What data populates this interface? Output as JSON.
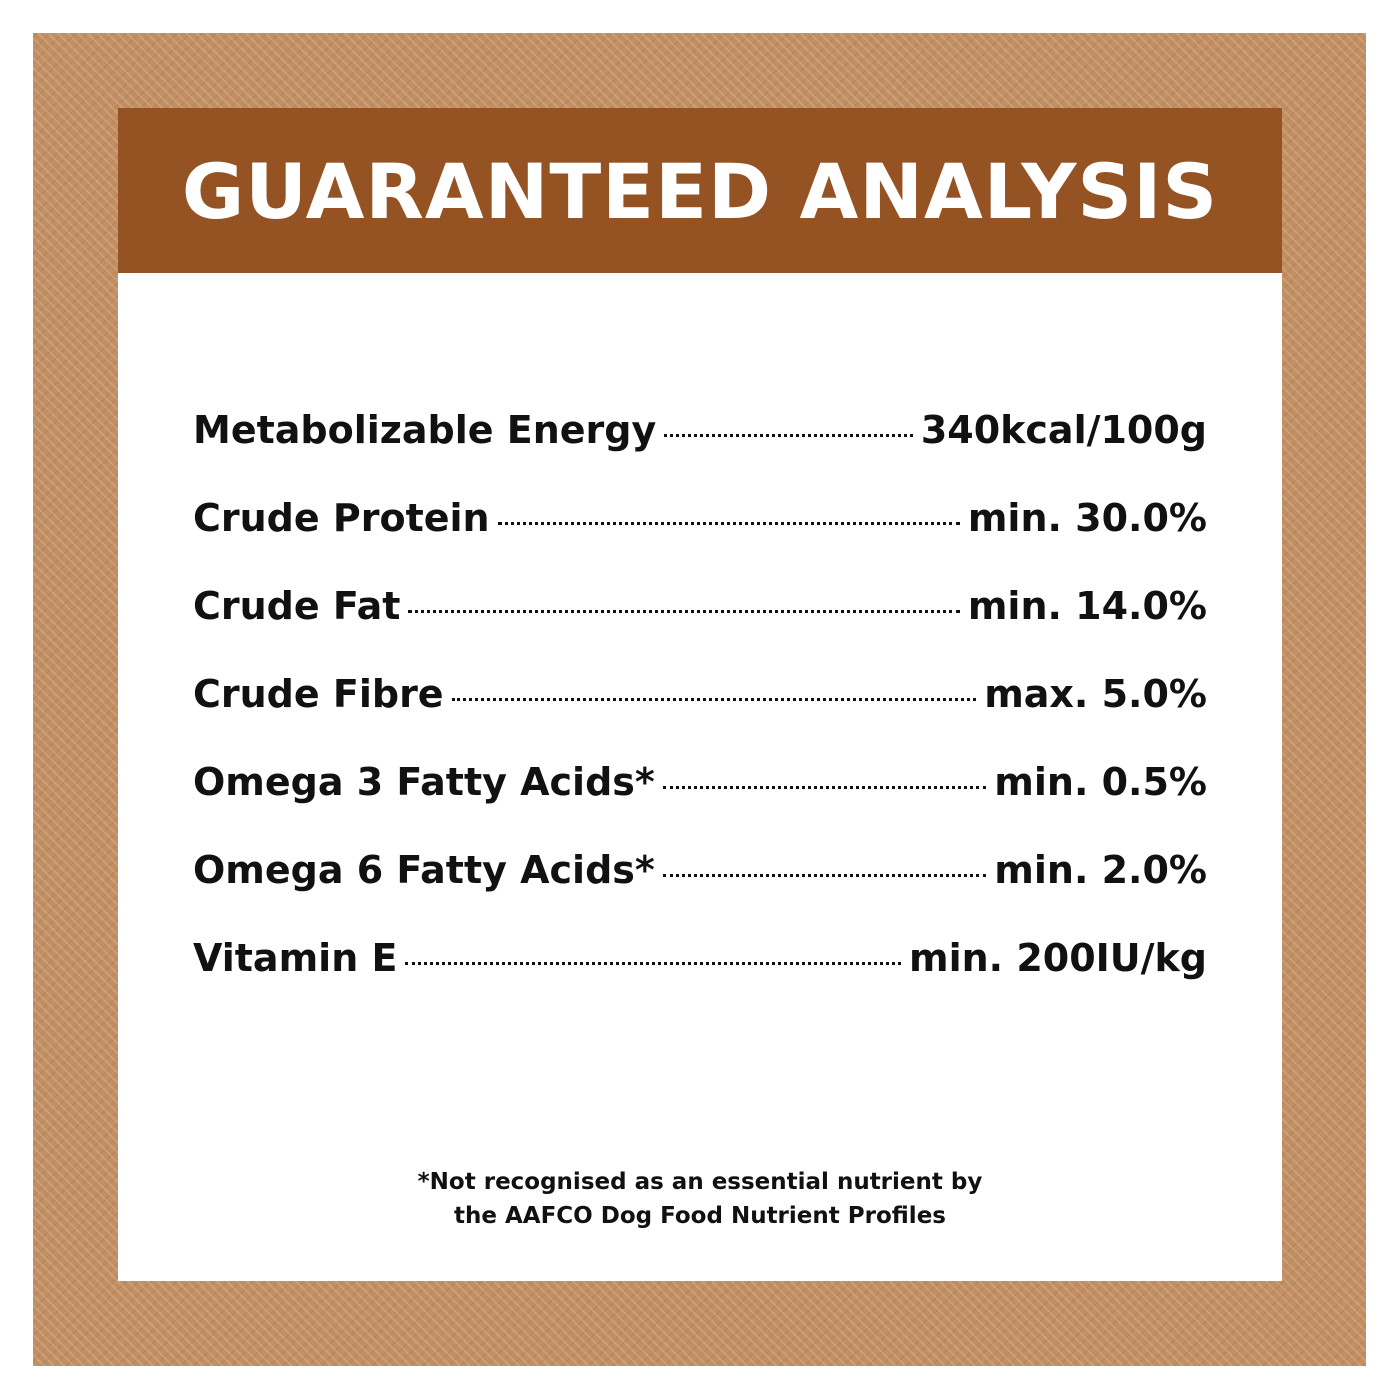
{
  "title": "GUARANTEED ANALYSIS",
  "colors": {
    "frame": "#c18f63",
    "header": "#955324",
    "panel": "#ffffff"
  },
  "rows": [
    {
      "label": "Metabolizable Energy",
      "value": "340kcal/100g"
    },
    {
      "label": "Crude Protein",
      "value": "min. 30.0%"
    },
    {
      "label": "Crude Fat",
      "value": "min. 14.0%"
    },
    {
      "label": "Crude Fibre",
      "value": "max. 5.0%"
    },
    {
      "label": "Omega 3 Fatty Acids*",
      "value": "min. 0.5%"
    },
    {
      "label": "Omega 6 Fatty Acids*",
      "value": "min. 2.0%"
    },
    {
      "label": "Vitamin E",
      "value": "min. 200IU/kg"
    }
  ],
  "footnote": {
    "line1": "*Not recognised as an essential nutrient by",
    "line2": "the AAFCO Dog Food Nutrient Profiles"
  }
}
